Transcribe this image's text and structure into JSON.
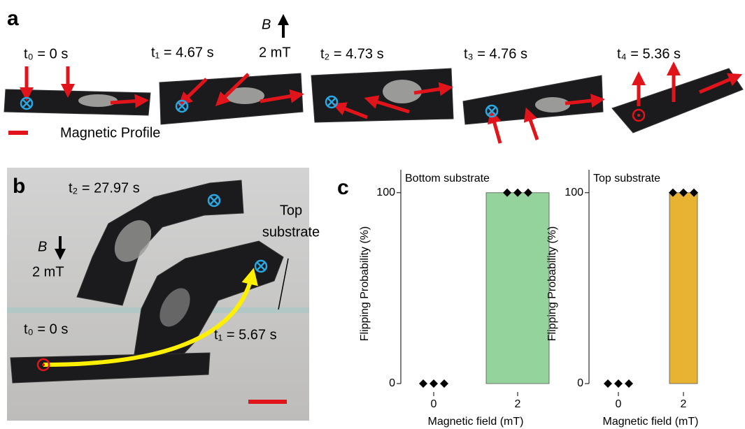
{
  "panel_a": {
    "label": "a",
    "frames": [
      "t₀ = 0 s",
      "t₁ = 4.67 s",
      "t₂ = 4.73 s",
      "t₃ = 4.76 s",
      "t₄ = 5.36 s"
    ],
    "field_symbol": "B",
    "field_value": "2 mT",
    "legend": "Magnetic Profile"
  },
  "panel_b": {
    "label": "b",
    "time_top": "t₂ = 27.97 s",
    "time_start": "t₀ = 0 s",
    "time_mid": "t₁ = 5.67 s",
    "substrate_line1": "Top",
    "substrate_line2": "substrate",
    "field_symbol": "B",
    "field_value": "2 mT"
  },
  "panel_c": {
    "label": "c"
  },
  "chart_data": [
    {
      "type": "bar",
      "title": "Bottom substrate",
      "categories": [
        "0",
        "2"
      ],
      "values": [
        0,
        100
      ],
      "points": [
        [
          0,
          0,
          0
        ],
        [
          100,
          100,
          100
        ]
      ],
      "color": "#94d39c",
      "xlabel": "Magnetic field (mT)",
      "ylabel": "Flipping Probability (%)",
      "ylim": [
        0,
        112
      ],
      "yticks": [
        0,
        100
      ]
    },
    {
      "type": "bar",
      "title": "Top substrate",
      "categories": [
        "0",
        "2"
      ],
      "values": [
        0,
        100
      ],
      "points": [
        [
          0,
          0,
          0
        ],
        [
          100,
          100,
          100
        ]
      ],
      "color": "#e8b232",
      "xlabel": "Magnetic field (mT)",
      "ylabel": "Flipping Probability (%)",
      "ylim": [
        0,
        112
      ],
      "yticks": [
        0,
        100
      ]
    }
  ]
}
